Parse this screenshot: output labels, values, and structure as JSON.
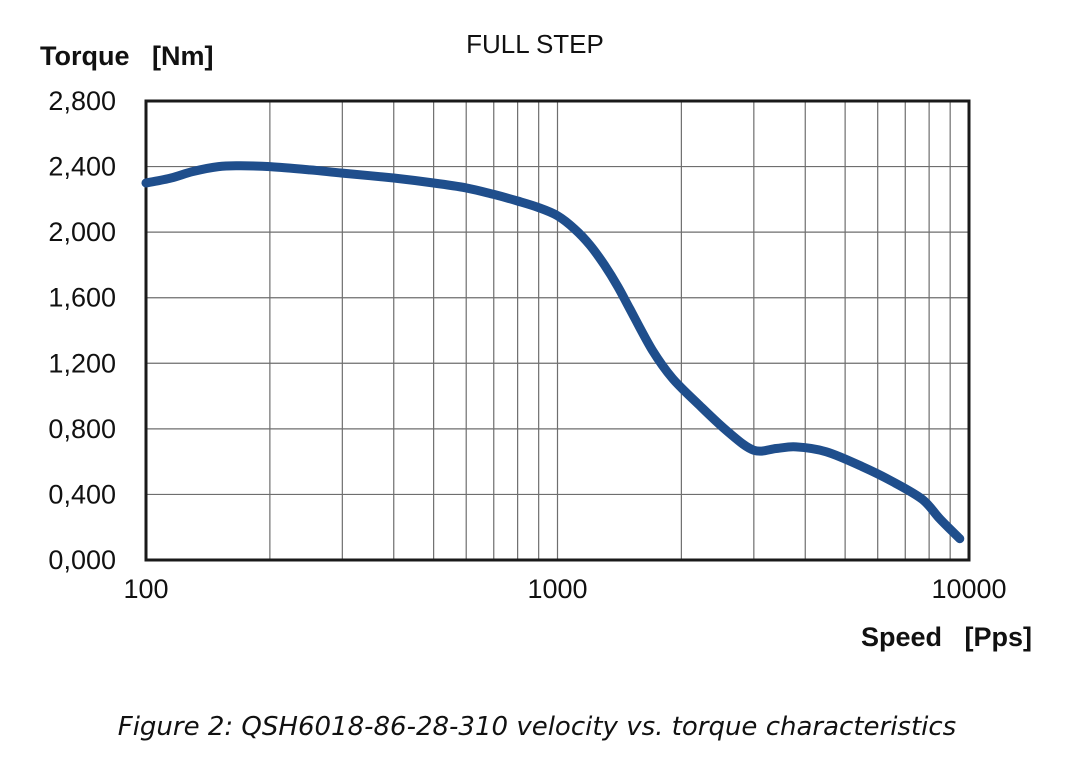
{
  "chart_data": {
    "type": "line",
    "title": "FULL STEP",
    "ylabel": "Torque   [Nm]",
    "xlabel": "Speed   [Pps]",
    "x_scale": "log",
    "xlim": [
      100,
      10000
    ],
    "ylim": [
      0,
      2.8
    ],
    "x_ticks": [
      100,
      1000,
      10000
    ],
    "x_tick_labels": [
      "100",
      "1000",
      "10000"
    ],
    "y_ticks": [
      0,
      0.4,
      0.8,
      1.2,
      1.6,
      2.0,
      2.4,
      2.8
    ],
    "y_tick_labels": [
      "0,000",
      "0,400",
      "0,800",
      "1,200",
      "1,600",
      "2,000",
      "2,400",
      "2,800"
    ],
    "grid": true,
    "legend": "none",
    "series": [
      {
        "color": "#1f4e8c",
        "points": [
          [
            100,
            2.3
          ],
          [
            115,
            2.33
          ],
          [
            130,
            2.37
          ],
          [
            150,
            2.4
          ],
          [
            170,
            2.405
          ],
          [
            200,
            2.4
          ],
          [
            250,
            2.38
          ],
          [
            300,
            2.36
          ],
          [
            400,
            2.33
          ],
          [
            500,
            2.3
          ],
          [
            600,
            2.27
          ],
          [
            700,
            2.23
          ],
          [
            800,
            2.19
          ],
          [
            900,
            2.15
          ],
          [
            1000,
            2.1
          ],
          [
            1100,
            2.02
          ],
          [
            1200,
            1.92
          ],
          [
            1300,
            1.8
          ],
          [
            1400,
            1.67
          ],
          [
            1500,
            1.53
          ],
          [
            1700,
            1.28
          ],
          [
            1900,
            1.11
          ],
          [
            2200,
            0.95
          ],
          [
            2600,
            0.78
          ],
          [
            3000,
            0.67
          ],
          [
            3400,
            0.68
          ],
          [
            3800,
            0.69
          ],
          [
            4500,
            0.66
          ],
          [
            5500,
            0.57
          ],
          [
            6500,
            0.48
          ],
          [
            7700,
            0.37
          ],
          [
            8500,
            0.25
          ],
          [
            9500,
            0.13
          ]
        ]
      }
    ]
  },
  "caption": "Figure 2: QSH6018-86-28-310 velocity vs. torque characteristics"
}
